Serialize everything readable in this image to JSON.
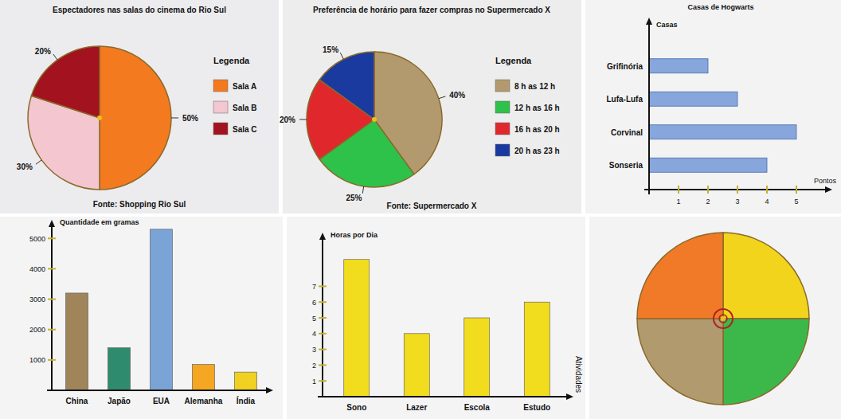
{
  "chart_data": [
    {
      "type": "pie",
      "title": "Espectadores nas salas do cinema do Rio Sul",
      "source": "Fonte: Shopping Rio Sul",
      "legend_title": "Legenda",
      "legend": "right",
      "categories": [
        "Sala A",
        "Sala B",
        "Sala C"
      ],
      "values": [
        50,
        30,
        20
      ],
      "value_labels": [
        "50%",
        "30%",
        "20%"
      ],
      "data_labels": true,
      "colors": [
        "#f47a20",
        "#f4c6cf",
        "#a3121f"
      ]
    },
    {
      "type": "pie",
      "title": "Preferência de horário para fazer compras no Supermercado X",
      "source": "Fonte: Supermercado X",
      "legend_title": "Legenda",
      "legend": "right",
      "categories": [
        "8 h as 12 h",
        "12 h as 16 h",
        "16 h as 20 h",
        "20 h as 23 h"
      ],
      "values": [
        40,
        25,
        20,
        15
      ],
      "value_labels": [
        "40%",
        "25%",
        "20%",
        "15%"
      ],
      "data_labels": true,
      "colors": [
        "#b39a6e",
        "#2ec24a",
        "#e0282c",
        "#1a3aa0"
      ]
    },
    {
      "type": "bar",
      "orientation": "horizontal",
      "title": "Casas de Hogwarts",
      "y_label": "Casas",
      "x_label": "Pontos",
      "categories": [
        "Grifinória",
        "Lufa-Lufa",
        "Corvinal",
        "Sonseria"
      ],
      "values": [
        2,
        3,
        5,
        4
      ],
      "color": "#86a6dc",
      "xlim": [
        0,
        6
      ],
      "xticks": [
        1,
        2,
        3,
        4,
        5
      ],
      "grid": false
    },
    {
      "type": "bar",
      "y_label": "Quantidade em gramas",
      "categories": [
        "China",
        "Japão",
        "EUA",
        "Alemanha",
        "Índia"
      ],
      "values": [
        3200,
        1400,
        5300,
        850,
        600
      ],
      "colors": [
        "#a0855a",
        "#2e8b6e",
        "#7aa3d6",
        "#f5a623",
        "#f0d020"
      ],
      "ylim": [
        0,
        5400
      ],
      "yticks": [
        1000,
        2000,
        3000,
        4000,
        5000
      ],
      "grid": false
    },
    {
      "type": "bar",
      "y_label": "Horas por Dia",
      "x_label": "Atividades",
      "categories": [
        "Sono",
        "Lazer",
        "Escola",
        "Estudo"
      ],
      "values": [
        8.7,
        4,
        5,
        6
      ],
      "color": "#f2dc1e",
      "ylim": [
        0,
        10
      ],
      "yticks": [
        1,
        2,
        3,
        4,
        5,
        6,
        7
      ],
      "grid": false
    },
    {
      "type": "pie",
      "values": [
        25,
        25,
        25,
        25
      ],
      "colors": [
        "#f2d41c",
        "#3cb84a",
        "#b09a6e",
        "#f07a28"
      ],
      "data_labels": false
    }
  ]
}
